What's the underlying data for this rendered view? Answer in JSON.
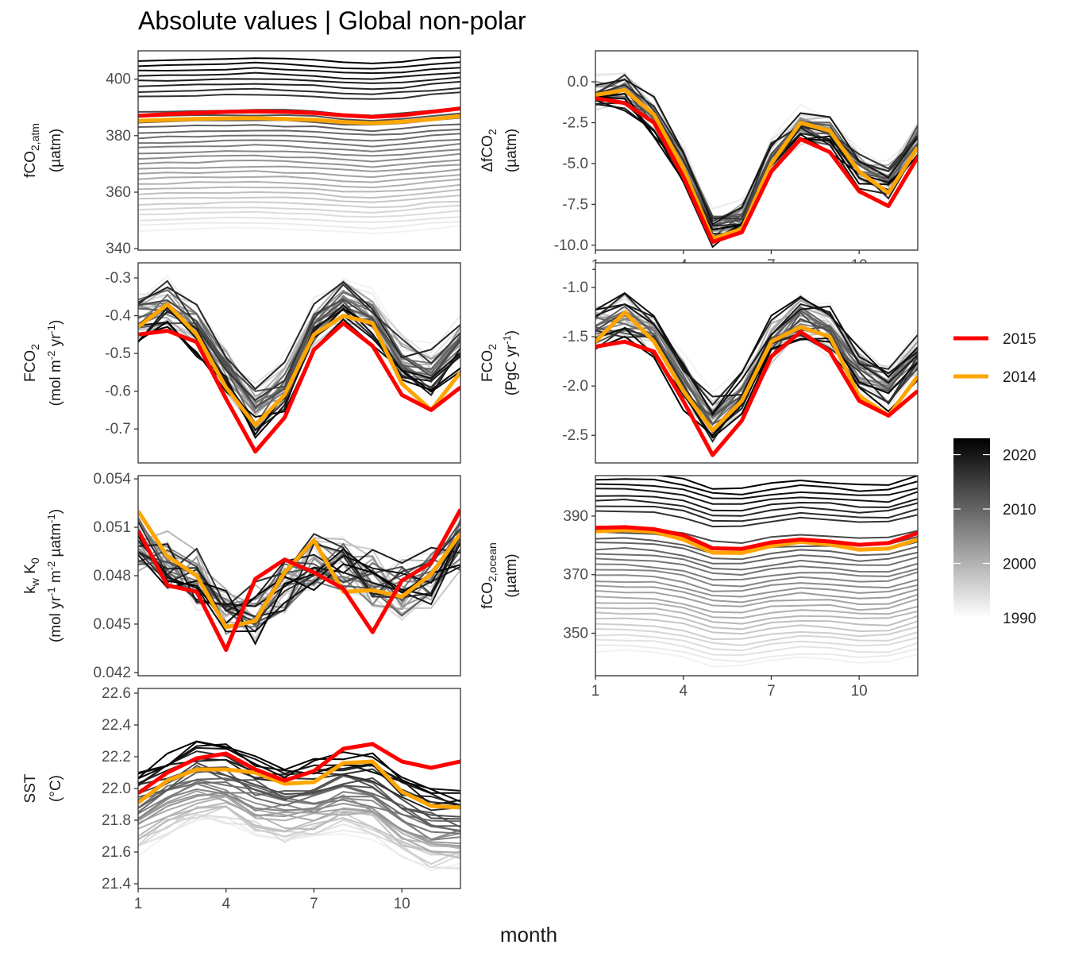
{
  "title": "Absolute values | Global non-polar",
  "chart_data": {
    "type": "line",
    "xlabel": "month",
    "x": [
      1,
      2,
      3,
      4,
      5,
      6,
      7,
      8,
      9,
      10,
      11,
      12
    ],
    "xticks": [
      1,
      4,
      7,
      10
    ],
    "year_range": [
      1990,
      2023
    ],
    "highlight_series": [
      {
        "name": "2015",
        "color": "#ff0000"
      },
      {
        "name": "2014",
        "color": "#ffa500"
      }
    ],
    "colorbar": {
      "ticks": [
        1990,
        2000,
        2010,
        2020
      ],
      "low_color": "#f2f2f2",
      "high_color": "#000000"
    },
    "panels": [
      {
        "id": "fco2atm",
        "ylabel_lines": [
          "fCO2,atm",
          "(µatm)"
        ],
        "ylim": [
          339.5,
          410
        ],
        "yticks": [
          340,
          360,
          380,
          400
        ],
        "ytick_labels": [
          "340",
          "360",
          "380",
          "400"
        ],
        "show_x_ticks": false,
        "series_2015": [
          387.0,
          387.6,
          388.0,
          388.4,
          388.6,
          388.4,
          388.0,
          387.2,
          386.6,
          387.2,
          388.4,
          389.6
        ],
        "series_2014": [
          385.2,
          385.6,
          385.9,
          386.1,
          386.2,
          385.9,
          385.6,
          384.8,
          384.4,
          384.9,
          385.8,
          386.9
        ],
        "background": {
          "kind": "trend",
          "first": 346.5,
          "last": 406.5,
          "profile": [
            0,
            0.3,
            0.5,
            0.7,
            0.9,
            0.6,
            0.2,
            -0.6,
            -1.0,
            -0.4,
            0.6,
            1.4
          ],
          "noise": 0.3
        }
      },
      {
        "id": "dfco2",
        "ylabel_lines": [
          "ΔfCO2",
          "(µatm)"
        ],
        "ylim": [
          -10.3,
          1.9
        ],
        "yticks": [
          -10,
          -7.5,
          -5,
          -2.5,
          0
        ],
        "ytick_labels": [
          "-10.0",
          "-7.5",
          "-5.0",
          "-2.5",
          "0.0"
        ],
        "show_x_ticks": true,
        "series_2015": [
          -1.0,
          -1.3,
          -2.5,
          -5.8,
          -9.8,
          -9.2,
          -5.5,
          -3.5,
          -4.3,
          -6.7,
          -7.6,
          -4.6
        ],
        "series_2014": [
          -0.8,
          -0.5,
          -2.0,
          -5.3,
          -9.6,
          -9.0,
          -5.0,
          -2.5,
          -3.0,
          -5.5,
          -6.8,
          -4.0
        ],
        "background": {
          "kind": "shape",
          "profile": [
            -0.7,
            -0.5,
            -2.0,
            -5.0,
            -8.8,
            -8.3,
            -4.8,
            -2.7,
            -3.2,
            -5.4,
            -6.0,
            -3.4
          ],
          "offset_span": 1.6,
          "noise": 0.6
        }
      },
      {
        "id": "fco2_mol",
        "ylabel_lines": [
          "FCO2",
          "(mol m-2 yr-1)"
        ],
        "ylim": [
          -0.79,
          -0.26
        ],
        "yticks": [
          -0.7,
          -0.6,
          -0.5,
          -0.4,
          -0.3
        ],
        "ytick_labels": [
          "-0.7",
          "-0.6",
          "-0.5",
          "-0.4",
          "-0.3"
        ],
        "show_x_ticks": false,
        "series_2015": [
          -0.45,
          -0.44,
          -0.47,
          -0.62,
          -0.76,
          -0.67,
          -0.49,
          -0.42,
          -0.48,
          -0.61,
          -0.65,
          -0.59
        ],
        "series_2014": [
          -0.43,
          -0.37,
          -0.45,
          -0.59,
          -0.69,
          -0.61,
          -0.45,
          -0.4,
          -0.42,
          -0.58,
          -0.65,
          -0.55
        ],
        "background": {
          "kind": "shape",
          "profile": [
            -0.4,
            -0.37,
            -0.43,
            -0.54,
            -0.65,
            -0.58,
            -0.43,
            -0.36,
            -0.4,
            -0.52,
            -0.55,
            -0.47
          ],
          "offset_span": 0.1,
          "noise": 0.035
        }
      },
      {
        "id": "fco2_pgc",
        "ylabel_lines": [
          "FCO2",
          "(PgC yr-1)"
        ],
        "ylim": [
          -2.78,
          -0.75
        ],
        "yticks": [
          -2.5,
          -2.0,
          -1.5,
          -1.0
        ],
        "ytick_labels": [
          "-2.5",
          "-2.0",
          "-1.5",
          "-1.0"
        ],
        "show_x_ticks": false,
        "series_2015": [
          -1.6,
          -1.55,
          -1.65,
          -2.15,
          -2.7,
          -2.35,
          -1.7,
          -1.45,
          -1.65,
          -2.15,
          -2.3,
          -2.05
        ],
        "series_2014": [
          -1.55,
          -1.25,
          -1.55,
          -2.05,
          -2.45,
          -2.15,
          -1.55,
          -1.4,
          -1.5,
          -2.1,
          -2.3,
          -1.9
        ],
        "background": {
          "kind": "shape",
          "profile": [
            -1.45,
            -1.3,
            -1.5,
            -1.95,
            -2.35,
            -2.1,
            -1.55,
            -1.3,
            -1.45,
            -1.85,
            -2.0,
            -1.7
          ],
          "offset_span": 0.35,
          "noise": 0.12
        }
      },
      {
        "id": "kwk0",
        "ylabel_lines": [
          "kw K0",
          "(mol yr-1 m-2 µatm-1)"
        ],
        "ylim": [
          0.0418,
          0.0542
        ],
        "yticks": [
          0.042,
          0.045,
          0.048,
          0.051,
          0.054
        ],
        "ytick_labels": [
          "0.042",
          "0.045",
          "0.048",
          "0.051",
          "0.054"
        ],
        "show_x_ticks": false,
        "series_2015": [
          0.0508,
          0.0474,
          0.047,
          0.0434,
          0.0478,
          0.049,
          0.0482,
          0.0472,
          0.0445,
          0.0477,
          0.0488,
          0.0521
        ],
        "series_2014": [
          0.052,
          0.0492,
          0.048,
          0.0448,
          0.0452,
          0.0482,
          0.0502,
          0.047,
          0.0471,
          0.0467,
          0.0481,
          0.0506
        ],
        "background": {
          "kind": "shape",
          "profile": [
            0.05,
            0.049,
            0.0478,
            0.046,
            0.0458,
            0.0472,
            0.049,
            0.0485,
            0.0478,
            0.0472,
            0.0478,
            0.05
          ],
          "offset_span": 0.001,
          "noise": 0.0016
        }
      },
      {
        "id": "fco2ocean",
        "ylabel_lines": [
          "fCO2,ocean",
          "(µatm)"
        ],
        "ylim": [
          335.5,
          403.8
        ],
        "yticks": [
          350,
          370,
          390
        ],
        "ytick_labels": [
          "350",
          "370",
          "390"
        ],
        "show_x_ticks": true,
        "series_2015": [
          386.0,
          386.2,
          385.5,
          383.5,
          379.0,
          378.8,
          381.0,
          382.0,
          381.3,
          380.2,
          380.8,
          384.2
        ],
        "series_2014": [
          384.8,
          385.2,
          384.6,
          382.0,
          377.5,
          377.4,
          379.8,
          381.2,
          380.3,
          378.5,
          378.9,
          382.0
        ],
        "background": {
          "kind": "trend",
          "first": 342.0,
          "last": 402.5,
          "profile": [
            2.0,
            2.0,
            1.5,
            0.0,
            -3.0,
            -3.2,
            -1.5,
            -0.5,
            -1.0,
            -2.0,
            -1.8,
            1.0
          ],
          "noise": 0.4
        }
      },
      {
        "id": "sst",
        "ylabel_lines": [
          "SST",
          "(°C)"
        ],
        "ylim": [
          21.37,
          22.63
        ],
        "yticks": [
          21.4,
          21.6,
          21.8,
          22.0,
          22.2,
          22.4,
          22.6
        ],
        "ytick_labels": [
          "21.4",
          "21.6",
          "21.8",
          "22.0",
          "22.2",
          "22.4",
          "22.6"
        ],
        "show_x_ticks": true,
        "series_2015": [
          21.97,
          22.1,
          22.19,
          22.22,
          22.12,
          22.05,
          22.11,
          22.25,
          22.28,
          22.17,
          22.13,
          22.17
        ],
        "series_2014": [
          21.91,
          22.05,
          22.12,
          22.12,
          22.1,
          22.03,
          22.04,
          22.16,
          22.17,
          21.98,
          21.89,
          21.88
        ],
        "background": {
          "kind": "trend",
          "first": 21.62,
          "last": 22.1,
          "profile": [
            0.0,
            0.1,
            0.18,
            0.16,
            0.08,
            0.03,
            0.05,
            0.12,
            0.08,
            -0.05,
            -0.12,
            -0.12
          ],
          "noise": 0.05
        }
      }
    ]
  }
}
